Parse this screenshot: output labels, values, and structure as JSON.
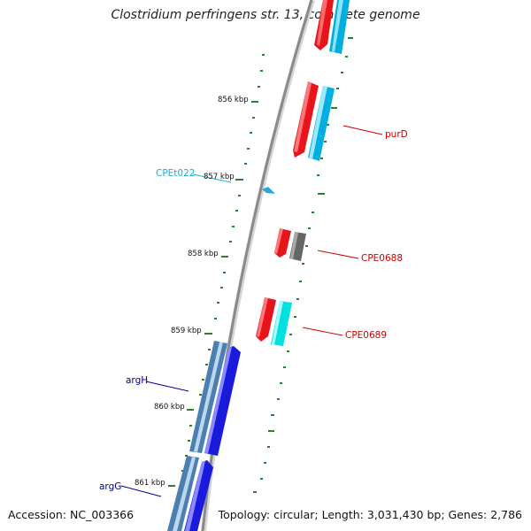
{
  "title": "Clostridium perfringens str. 13, complete genome",
  "footer": {
    "accession": "Accession: NC_003366",
    "summary": "Topology: circular; Length: 3,031,430 bp; Genes: 2,786"
  },
  "colors": {
    "backbone": "#888888",
    "tick": "#2e7d32",
    "gene_red": "#e8141c",
    "gene_cyan": "#00aee0",
    "gene_blue": "#1a1adc",
    "gene_steelblue": "#4a7fb0",
    "gene_gray": "#666666",
    "label_red": "#cc0000",
    "label_cyan": "#1aaed6",
    "label_blue": "#000099"
  },
  "kbp_ticks": [
    {
      "label": "856 kbp"
    },
    {
      "label": "857 kbp"
    },
    {
      "label": "858 kbp"
    },
    {
      "label": "859 kbp"
    },
    {
      "label": "860 kbp"
    },
    {
      "label": "861 kbp"
    }
  ],
  "gene_labels": [
    {
      "name": "purD",
      "color": "label_red"
    },
    {
      "name": "CPEt022",
      "color": "label_cyan"
    },
    {
      "name": "CPE0688",
      "color": "label_red"
    },
    {
      "name": "CPE0689",
      "color": "label_red"
    },
    {
      "name": "argH",
      "color": "label_blue"
    },
    {
      "name": "argG",
      "color": "label_blue"
    }
  ]
}
